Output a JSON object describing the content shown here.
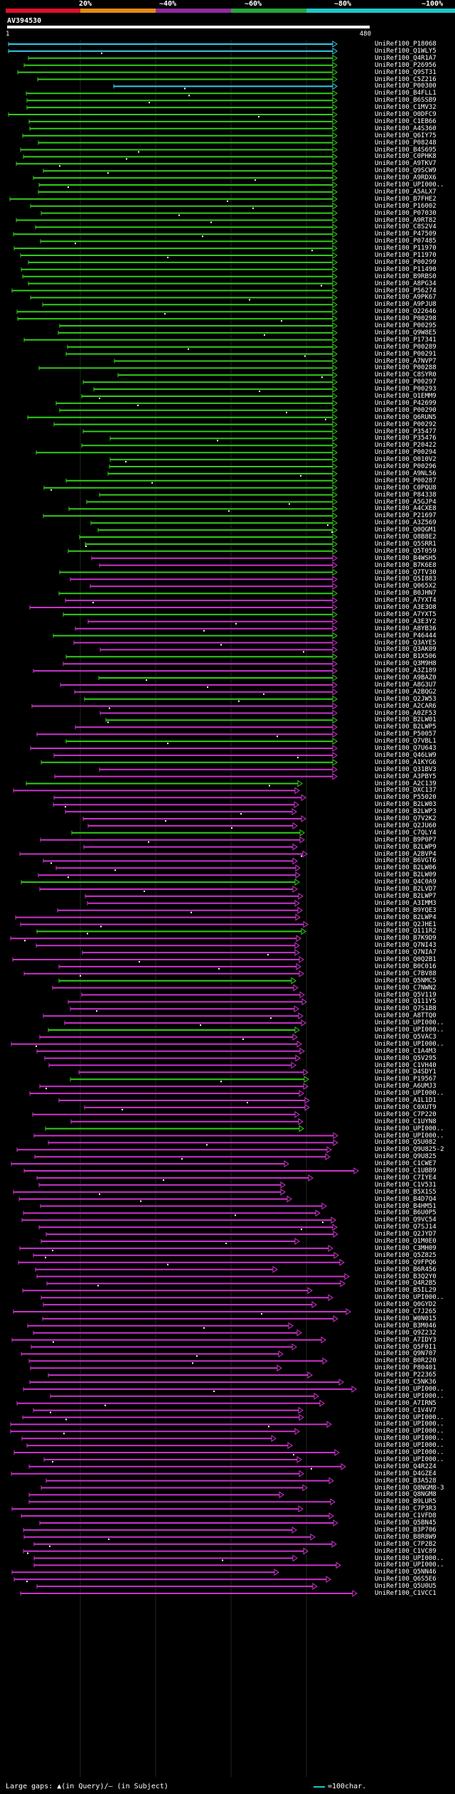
{
  "scale": {
    "labels": [
      "20%",
      "~40%",
      "~60%",
      "~80%",
      "~100%"
    ],
    "colors": [
      "#e0102a",
      "#e58a16",
      "#8e2c9c",
      "#2aa43c",
      "#1fc7c7"
    ]
  },
  "query": {
    "title": "AV394530",
    "start": "1",
    "end": "480"
  },
  "footer": {
    "legend": "Large gaps: ▲(in Query)/– (in Subject)",
    "scale_note": "=100char."
  },
  "colors": {
    "green": "#33cc1a",
    "cyan": "#35c8e6",
    "magenta": "#cc33cc",
    "dark_magenta": "#5a1a5a"
  },
  "hits": [
    "UniRef100_P18068",
    "UniRef100_Q1WLY5",
    "UniRef100_Q4R1A7",
    "UniRef100_P26956",
    "UniRef100_Q9ST31",
    "UniRef100_C5Z216",
    "UniRef100_P00300",
    "UniRef100_B4FLL1",
    "UniRef100_B6SSB9",
    "UniRef100_C1MV32",
    "UniRef100_O0DFC9",
    "UniRef100_C1EB66",
    "UniRef100_A4S360",
    "UniRef100_Q6IY75",
    "UniRef100_P08248",
    "UniRef100_B4S695",
    "UniRef100_C0PHK8",
    "UniRef100_A9TKV7",
    "UniRef100_Q9SCW9",
    "UniRef100_A9RDX6",
    "UniRef100_UPI000..",
    "UniRef100_A5ALX7",
    "UniRef100_B7FHE2",
    "UniRef100_P16002",
    "UniRef100_P07030",
    "UniRef100_A9RT82",
    "UniRef100_C8S2V4",
    "UniRef100_P47509",
    "UniRef100_P07485",
    "UniRef100_P11970",
    "UniRef100_P11970",
    "UniRef100_P00299",
    "UniRef100_P11490",
    "UniRef100_B9RBS0",
    "UniRef100_A8PG34",
    "UniRef100_P56274",
    "UniRef100_A9PK67",
    "UniRef100_A9PJU8",
    "UniRef100_O22646",
    "UniRef100_P00298",
    "UniRef100_P00295",
    "UniRef100_Q9W8E5",
    "UniRef100_P17341",
    "UniRef100_P00289",
    "UniRef100_P00291",
    "UniRef100_A7NVP7",
    "UniRef100_P00288",
    "UniRef100_C8SYR0",
    "UniRef100_P00297",
    "UniRef100_P00293",
    "UniRef100_O1EMM9",
    "UniRef100_P42699",
    "UniRef100_P00290",
    "UniRef100_Q6RUN5",
    "UniRef100_P00292",
    "UniRef100_P35477",
    "UniRef100_P35476",
    "UniRef100_P20422",
    "UniRef100_P00294",
    "UniRef100_O010V2",
    "UniRef100_P00296",
    "UniRef100_A9NL56",
    "UniRef100_P00287",
    "UniRef100_C0PQU8",
    "UniRef100_P84338",
    "UniRef100_A5GJP4",
    "UniRef100_A4CXE8",
    "UniRef100_P21697",
    "UniRef100_A3Z569",
    "UniRef100_Q0QGM1",
    "UniRef100_Q8B8E2",
    "UniRef100_Q5SRR1",
    "UniRef100_Q5T059",
    "UniRef100_B4WSH5",
    "UniRef100_B7K6E8",
    "UniRef100_Q7TV30",
    "UniRef100_Q5I883",
    "UniRef100_Q065X2",
    "UniRef100_B0JHN7",
    "UniRef100_A7YXT4",
    "UniRef100_A3E3O8",
    "UniRef100_A7YXT5",
    "UniRef100_A3E3Y2",
    "UniRef100_A8YB36",
    "UniRef100_P46444",
    "UniRef100_Q3AYE5",
    "UniRef100_Q3AK09",
    "UniRef100_B1X506",
    "UniRef100_Q3M9H8",
    "UniRef100_A3Z189",
    "UniRef100_A9BAZ0",
    "UniRef100_A8G3U7",
    "UniRef100_A2BQG2",
    "UniRef100_Q2JW53",
    "UniRef100_A2CAR6",
    "UniRef100_A0ZF53",
    "UniRef100_B2LW01",
    "UniRef100_B2LWP5",
    "UniRef100_P50057",
    "UniRef100_Q7VBL1",
    "UniRef100_Q7U643",
    "UniRef100_Q46LW9",
    "UniRef100_A1KYG6",
    "UniRef100_Q31BV3",
    "UniRef100_A3PBY5",
    "UniRef100_A2C139",
    "UniRef100_DXC137",
    "UniRef100_P55020",
    "UniRef100_B2LW03",
    "UniRef100_B2LWP3",
    "UniRef100_Q7V2K2",
    "UniRef100_Q2JU60",
    "UniRef100_C7QLY4",
    "UniRef100_B9P0P7",
    "UniRef100_B2LWP9",
    "UniRef100_A2BVP4",
    "UniRef100_B6VGT6",
    "UniRef100_B2LW06",
    "UniRef100_B2LW09",
    "UniRef100_Q4C0A9",
    "UniRef100_B2LVD7",
    "UniRef100_B2LWP7",
    "UniRef100_A3IMM3",
    "UniRef100_B9YQE3",
    "UniRef100_B2LWP4",
    "UniRef100_Q2JHE1",
    "UniRef100_Q111R2",
    "UniRef100_B7K9D9",
    "UniRef100_Q7NI43",
    "UniRef100_Q7NIA7",
    "UniRef100_Q0Q2B1",
    "UniRef100_B0C016",
    "UniRef100_C7BV88",
    "UniRef100_Q5NMC5",
    "UniRef100_C7NWN2",
    "UniRef100_Q5V119",
    "UniRef100_Q111Y5",
    "UniRef100_Q7S1B8",
    "UniRef100_A8TTQ0",
    "UniRef100_UPI000..",
    "UniRef100_UPI000..",
    "UniRef100_Q5VAC3",
    "UniRef100_UPI000..",
    "UniRef100_C1A4M3",
    "UniRef100_Q5V295",
    "UniRef100_C1VH40",
    "UniRef100_D4SDY1",
    "UniRef100_P19567",
    "UniRef100_A6UMJ3",
    "UniRef100_UPI000..",
    "UniRef100_A1L1D1",
    "UniRef100_C0XUT9",
    "UniRef100_C7P220",
    "UniRef100_C1UYN8",
    "UniRef100_UPI000..",
    "UniRef100_UPI000..",
    "UniRef100_Q5U082",
    "UniRef100_Q9U825-2",
    "UniRef100_Q9U825",
    "UniRef100_C1CWE7",
    "UniRef100_C1UBB9",
    "UniRef100_C7IYE4",
    "UniRef100_C1V531",
    "UniRef100_B5X1S5",
    "UniRef100_B4D7Q4",
    "UniRef100_B4HM51",
    "UniRef100_B6U0P5",
    "UniRef100_Q9VC54",
    "UniRef100_Q7SJ14",
    "UniRef100_Q2JYD7",
    "UniRef100_Q1M0E0",
    "UniRef100_C3MH09",
    "UniRef100_Q5Z825",
    "UniRef100_Q9FPQ6",
    "UniRef100_B6R456",
    "UniRef100_B3Q2Y0",
    "UniRef100_Q4R2B5",
    "UniRef100_B5IL29",
    "UniRef100_UPI000..",
    "UniRef100_Q0GYD2",
    "UniRef100_C7J265",
    "UniRef100_W0N015",
    "UniRef100_B3M046",
    "UniRef100_Q9Z232",
    "UniRef100_A7IDY3",
    "UniRef100_Q5F0I1",
    "UniRef100_Q9N707",
    "UniRef100_B0R220",
    "UniRef100_P80401",
    "UniRef100_P22365",
    "UniRef100_C5NK36",
    "UniRef100_UPI000..",
    "UniRef100_UPI000..",
    "UniRef100_A7IRN5",
    "UniRef100_C1V4V7",
    "UniRef100_UPI000..",
    "UniRef100_UPI000..",
    "UniRef100_UPI000..",
    "UniRef100_UPI000..",
    "UniRef100_UPI000..",
    "UniRef100_UPI000..",
    "UniRef100_UPI000..",
    "UniRef100_Q4R2Z4",
    "UniRef100_D4GZE4",
    "UniRef100_B3A528",
    "UniRef100_Q8NGM8-3",
    "UniRef100_Q8NGM8",
    "UniRef100_B9LUR5",
    "UniRef100_C7P3R3",
    "UniRef100_C1VFD8",
    "UniRef100_Q5BN45",
    "UniRef100_B3P706",
    "UniRef100_B8R8W9",
    "UniRef100_C7P2B2",
    "UniRef100_C1VC89",
    "UniRef100_UPI000..",
    "UniRef100_UPI000..",
    "UniRef100_Q5NN46",
    "UniRef100_Q6S5E6",
    "UniRef100_Q5U0U5",
    "UniRef100_C1VCC1"
  ]
}
